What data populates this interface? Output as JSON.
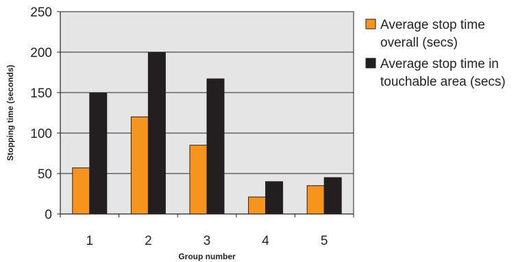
{
  "chart_data": {
    "type": "bar",
    "title": "",
    "xlabel": "Group number",
    "ylabel": "Stopping time (seconds)",
    "categories": [
      "1",
      "2",
      "3",
      "4",
      "5"
    ],
    "series": [
      {
        "name": "Average stop time overall (secs)",
        "legend_lines": [
          "Average stop time",
          "overall (secs)"
        ],
        "color": "#f7941d",
        "values": [
          57,
          120,
          85,
          21,
          35
        ]
      },
      {
        "name": "Average stop time in touchable area (secs)",
        "legend_lines": [
          "Average stop time in",
          "touchable area (secs)"
        ],
        "color": "#231f20",
        "values": [
          150,
          200,
          167,
          40,
          45
        ]
      }
    ],
    "ylim": [
      0,
      250
    ],
    "yticks": [
      0,
      50,
      100,
      150,
      200,
      250
    ],
    "grid": "horizontal",
    "plot_background": "#e5e5e5",
    "legend_position": "right"
  }
}
